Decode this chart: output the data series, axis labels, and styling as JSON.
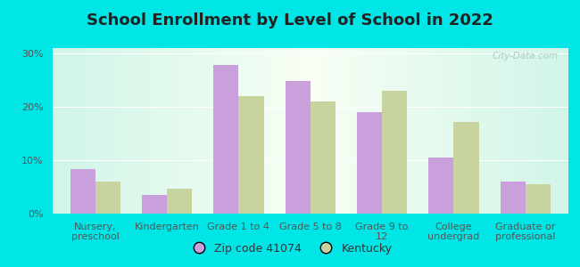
{
  "title": "School Enrollment by Level of School in 2022",
  "categories": [
    "Nursery,\npreschool",
    "Kindergarten",
    "Grade 1 to 4",
    "Grade 5 to 8",
    "Grade 9 to\n12",
    "College\nundergrad",
    "Graduate or\nprofessional"
  ],
  "zip_values": [
    8.3,
    3.5,
    27.8,
    24.8,
    19.0,
    10.5,
    6.0
  ],
  "ky_values": [
    6.0,
    4.7,
    22.0,
    21.0,
    23.0,
    17.2,
    5.5
  ],
  "zip_color": "#c9a0dc",
  "ky_color": "#c8d4a0",
  "background_outer": "#00e5e5",
  "background_inner_left": "#d0f5e8",
  "background_inner_center": "#f8fef4",
  "ylim": [
    0,
    31
  ],
  "yticks": [
    0,
    10,
    20,
    30
  ],
  "ytick_labels": [
    "0%",
    "10%",
    "20%",
    "30%"
  ],
  "legend_zip_label": "Zip code 41074",
  "legend_ky_label": "Kentucky",
  "title_fontsize": 13,
  "tick_fontsize": 8.0,
  "legend_fontsize": 9,
  "watermark_text": "City-Data.com",
  "bar_width": 0.35
}
